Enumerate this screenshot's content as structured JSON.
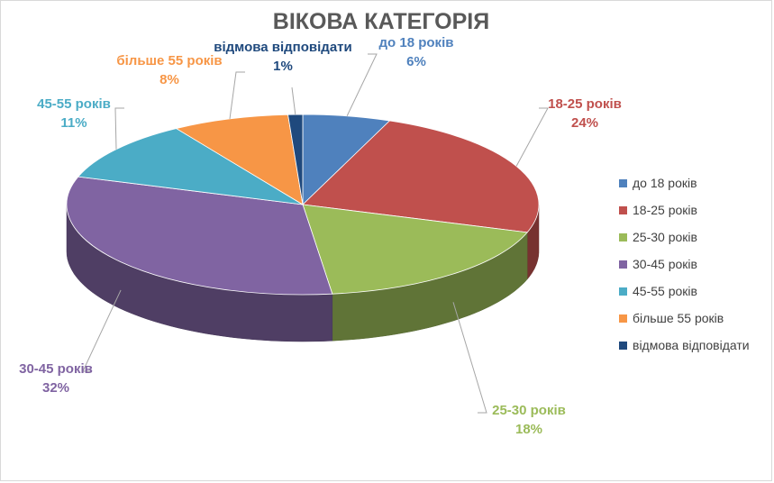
{
  "chart_data": {
    "type": "pie",
    "style": "3d",
    "title": "ВІКОВА КАТЕГОРІЯ",
    "legend_position": "right",
    "slices": [
      {
        "label": "до 18 років",
        "value": 6,
        "value_label": "6%",
        "color": "#4F81BD"
      },
      {
        "label": "18-25 років",
        "value": 24,
        "value_label": "24%",
        "color": "#C0504D"
      },
      {
        "label": "25-30 років",
        "value": 18,
        "value_label": "18%",
        "color": "#9BBB59"
      },
      {
        "label": "30-45 років",
        "value": 32,
        "value_label": "32%",
        "color": "#8064A2"
      },
      {
        "label": "45-55 років",
        "value": 11,
        "value_label": "11%",
        "color": "#4BACC6"
      },
      {
        "label": "більше 55 років",
        "value": 8,
        "value_label": "8%",
        "color": "#F79646"
      },
      {
        "label": "відмова відповідати",
        "value": 1,
        "value_label": "1%",
        "color": "#1F497D"
      }
    ]
  }
}
